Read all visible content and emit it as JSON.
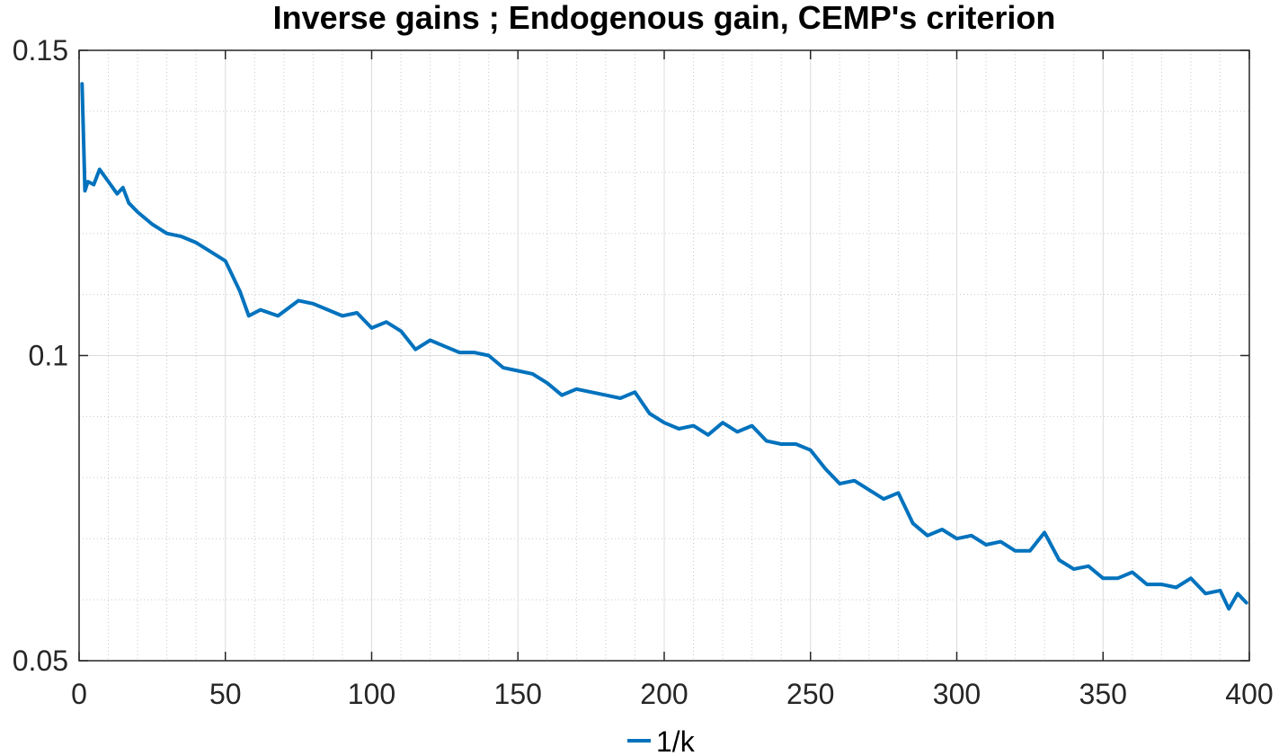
{
  "chart_data": {
    "type": "line",
    "title": "Inverse gains ; Endogenous gain, CEMP's criterion",
    "xlabel": "",
    "ylabel": "",
    "xlim": [
      0,
      400
    ],
    "ylim": [
      0.05,
      0.15
    ],
    "x_ticks": [
      0,
      50,
      100,
      150,
      200,
      250,
      300,
      350,
      400
    ],
    "x_tick_labels": [
      "0",
      "50",
      "100",
      "150",
      "200",
      "250",
      "300",
      "350",
      "400"
    ],
    "y_ticks": [
      0.05,
      0.1,
      0.15
    ],
    "y_tick_labels": [
      "0.05",
      "0.1",
      "0.15"
    ],
    "grid": "on (major and minor)",
    "legend_position": "bottom-outside",
    "series": [
      {
        "name": "1/k",
        "color": "#0072BD",
        "x": [
          1,
          2,
          3,
          5,
          7,
          10,
          13,
          15,
          17,
          20,
          25,
          30,
          35,
          40,
          45,
          50,
          55,
          58,
          62,
          68,
          75,
          80,
          85,
          90,
          95,
          100,
          105,
          110,
          115,
          120,
          125,
          130,
          135,
          140,
          145,
          150,
          155,
          160,
          165,
          170,
          175,
          180,
          185,
          190,
          195,
          200,
          205,
          210,
          215,
          220,
          225,
          230,
          235,
          240,
          245,
          250,
          255,
          260,
          265,
          270,
          275,
          280,
          285,
          290,
          295,
          300,
          305,
          310,
          315,
          320,
          325,
          330,
          335,
          340,
          345,
          350,
          355,
          360,
          365,
          370,
          375,
          380,
          385,
          390,
          393,
          396,
          399
        ],
        "y": [
          0.1445,
          0.127,
          0.1285,
          0.128,
          0.1305,
          0.1285,
          0.1265,
          0.1275,
          0.125,
          0.1235,
          0.1215,
          0.12,
          0.1195,
          0.1185,
          0.117,
          0.1155,
          0.1105,
          0.1065,
          0.1075,
          0.1065,
          0.109,
          0.1085,
          0.1075,
          0.1065,
          0.107,
          0.1045,
          0.1055,
          0.104,
          0.101,
          0.1025,
          0.1015,
          0.1005,
          0.1005,
          0.1,
          0.098,
          0.0975,
          0.097,
          0.0955,
          0.0935,
          0.0945,
          0.094,
          0.0935,
          0.093,
          0.094,
          0.0905,
          0.089,
          0.088,
          0.0885,
          0.087,
          0.089,
          0.0875,
          0.0885,
          0.086,
          0.0855,
          0.0855,
          0.0845,
          0.0815,
          0.079,
          0.0795,
          0.078,
          0.0765,
          0.0775,
          0.0725,
          0.0705,
          0.0715,
          0.07,
          0.0705,
          0.069,
          0.0695,
          0.068,
          0.068,
          0.071,
          0.0665,
          0.065,
          0.0655,
          0.0635,
          0.0635,
          0.0645,
          0.0625,
          0.0625,
          0.062,
          0.0635,
          0.061,
          0.0615,
          0.0585,
          0.061,
          0.0595
        ]
      }
    ]
  }
}
